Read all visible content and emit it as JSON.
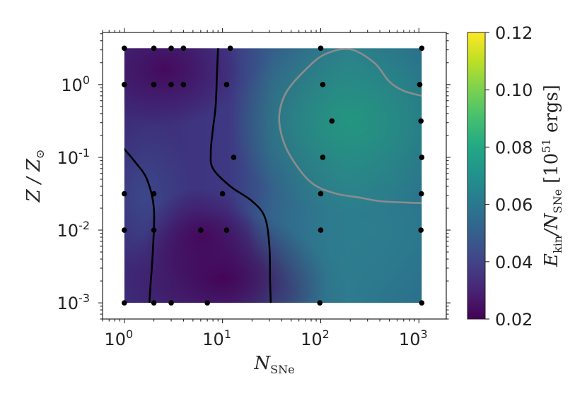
{
  "chart_data": {
    "type": "heatmap",
    "x_scale": "log",
    "y_scale": "log",
    "xlim": [
      0.6,
      1900
    ],
    "ylim": [
      0.0006,
      5.2
    ],
    "data_extent": {
      "x": [
        1,
        1070
      ],
      "y": [
        0.001,
        3.16
      ]
    },
    "xlabel": {
      "main": "N",
      "sub": "SNe"
    },
    "ylabel": {
      "main": "Z / Z",
      "sub": "⊙"
    },
    "x_ticks": [
      {
        "value": 1,
        "base": "10",
        "exp": "0"
      },
      {
        "value": 10,
        "base": "10",
        "exp": "1"
      },
      {
        "value": 100,
        "base": "10",
        "exp": "2"
      },
      {
        "value": 1000,
        "base": "10",
        "exp": "3"
      }
    ],
    "y_ticks": [
      {
        "value": 0.001,
        "base": "10",
        "exp": "-3"
      },
      {
        "value": 0.01,
        "base": "10",
        "exp": "-2"
      },
      {
        "value": 0.1,
        "base": "10",
        "exp": "-1"
      },
      {
        "value": 1,
        "base": "10",
        "exp": "0"
      }
    ],
    "colorbar": {
      "colormap": "viridis",
      "range": [
        0.02,
        0.12
      ],
      "ticks": [
        "0.12",
        "0.10",
        "0.08",
        "0.06",
        "0.04",
        "0.02"
      ],
      "label": {
        "main": "E",
        "sub1": "kin",
        "mid": "/N",
        "sub2": "SNe",
        "units": "[10",
        "units_sup": "51",
        "units_end": " ergs]"
      }
    },
    "field_min_regions": [
      {
        "x": 1.5,
        "y": 1.3,
        "value": 0.025
      },
      {
        "x": 9,
        "y": 0.002,
        "value": 0.021
      }
    ],
    "field_max_region": {
      "x": 200,
      "y": 0.3,
      "value": 0.065
    },
    "sample_points": [
      [
        1,
        3.16
      ],
      [
        2,
        3.16
      ],
      [
        3,
        3.16
      ],
      [
        4,
        3.16
      ],
      [
        12,
        3.16
      ],
      [
        100,
        3.16
      ],
      [
        1070,
        3.16
      ],
      [
        1,
        1
      ],
      [
        2,
        1
      ],
      [
        3,
        1
      ],
      [
        4,
        1
      ],
      [
        11,
        1
      ],
      [
        105,
        1
      ],
      [
        1020,
        1
      ],
      [
        130,
        0.316
      ],
      [
        1050,
        0.316
      ],
      [
        13,
        0.1
      ],
      [
        105,
        0.1
      ],
      [
        1070,
        0.1
      ],
      [
        1,
        0.0316
      ],
      [
        2,
        0.0316
      ],
      [
        10,
        0.0316
      ],
      [
        100,
        0.0316
      ],
      [
        1060,
        0.0316
      ],
      [
        1,
        0.01
      ],
      [
        2,
        0.01
      ],
      [
        6,
        0.01
      ],
      [
        11,
        0.01
      ],
      [
        100,
        0.01
      ],
      [
        1050,
        0.01
      ],
      [
        1,
        0.001
      ],
      [
        2,
        0.001
      ],
      [
        3,
        0.001
      ],
      [
        7,
        0.001
      ],
      [
        98,
        0.001
      ],
      [
        1070,
        0.001
      ]
    ],
    "contours": [
      {
        "level": 0.03,
        "color": "#000000",
        "points": [
          [
            1,
            0.13
          ],
          [
            1.3,
            0.085
          ],
          [
            1.7,
            0.05
          ],
          [
            2.0,
            0.02
          ],
          [
            1.95,
            0.005
          ],
          [
            1.85,
            0.0018
          ],
          [
            1.8,
            0.001
          ]
        ]
      },
      {
        "level": 0.03,
        "color": "#000000",
        "points": [
          [
            9,
            3.16
          ],
          [
            8.8,
            1.5
          ],
          [
            8.5,
            0.5
          ],
          [
            8.0,
            0.25
          ],
          [
            7.6,
            0.12
          ],
          [
            8.0,
            0.07
          ],
          [
            12,
            0.04
          ],
          [
            20,
            0.025
          ],
          [
            27,
            0.015
          ],
          [
            30,
            0.006
          ],
          [
            30.5,
            0.002
          ],
          [
            31,
            0.001
          ]
        ]
      },
      {
        "level": 0.06,
        "color": "#8c8c8c",
        "points": [
          [
            1070,
            0.7
          ],
          [
            700,
            0.82
          ],
          [
            500,
            1.1
          ],
          [
            350,
            2.0
          ],
          [
            200,
            3.05
          ],
          [
            110,
            2.6
          ],
          [
            70,
            1.6
          ],
          [
            45,
            0.8
          ],
          [
            38,
            0.4
          ],
          [
            40,
            0.2
          ],
          [
            50,
            0.1
          ],
          [
            80,
            0.045
          ],
          [
            140,
            0.032
          ],
          [
            250,
            0.028
          ],
          [
            400,
            0.025
          ],
          [
            700,
            0.024
          ],
          [
            1070,
            0.0235
          ]
        ]
      }
    ]
  }
}
